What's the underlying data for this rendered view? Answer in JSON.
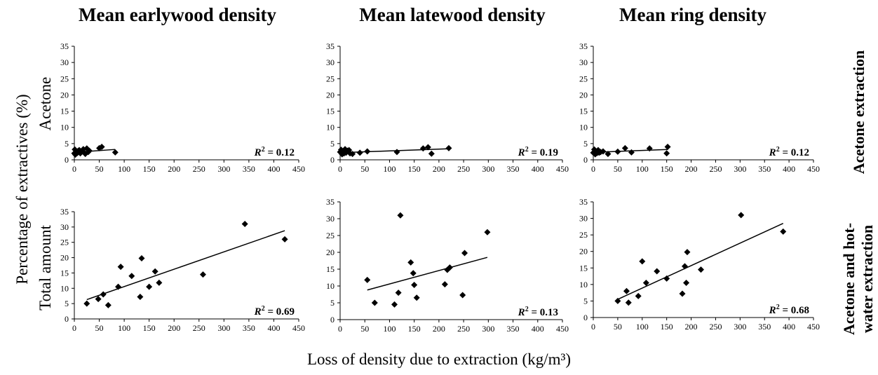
{
  "figure": {
    "col_titles": [
      "Mean earlywood density",
      "Mean latewood density",
      "Mean ring density"
    ],
    "ylabel_outer": "Percentage of extractives (%)",
    "ylabel_rows": [
      "Acetone",
      "Total amount"
    ],
    "row_labels": [
      [
        "Acetone extraction"
      ],
      [
        "Acetone and hot-",
        "water extraction"
      ]
    ],
    "xlabel": "Loss of density due to extraction (kg/m³)"
  },
  "chart_data": [
    {
      "type": "scatter",
      "title": "Mean earlywood density",
      "row": "Acetone",
      "xlim": [
        0,
        450
      ],
      "ylim": [
        0,
        35
      ],
      "xticks": [
        0,
        50,
        100,
        150,
        200,
        250,
        300,
        350,
        400,
        450
      ],
      "yticks": [
        0,
        5,
        10,
        15,
        20,
        25,
        30,
        35
      ],
      "points": [
        [
          0,
          2
        ],
        [
          1,
          3.2
        ],
        [
          2,
          1.6
        ],
        [
          4,
          2.6
        ],
        [
          6,
          2.1
        ],
        [
          8,
          2.8
        ],
        [
          10,
          3
        ],
        [
          12,
          2
        ],
        [
          15,
          2.5
        ],
        [
          18,
          3.3
        ],
        [
          20,
          2.2
        ],
        [
          22,
          1.8
        ],
        [
          25,
          3.5
        ],
        [
          28,
          2.4
        ],
        [
          30,
          2.8
        ],
        [
          50,
          3.6
        ],
        [
          55,
          4
        ],
        [
          82,
          2.3
        ]
      ],
      "trendline": [
        [
          0,
          2.3
        ],
        [
          82,
          3.2
        ]
      ],
      "r2": "0.12"
    },
    {
      "type": "scatter",
      "title": "Mean latewood density",
      "row": "Acetone",
      "xlim": [
        0,
        450
      ],
      "ylim": [
        0,
        35
      ],
      "xticks": [
        0,
        50,
        100,
        150,
        200,
        250,
        300,
        350,
        400,
        450
      ],
      "yticks": [
        0,
        5,
        10,
        15,
        20,
        25,
        30,
        35
      ],
      "points": [
        [
          0,
          2.4
        ],
        [
          2,
          3.1
        ],
        [
          4,
          1.7
        ],
        [
          6,
          2.6
        ],
        [
          8,
          2
        ],
        [
          10,
          3.3
        ],
        [
          12,
          2.2
        ],
        [
          15,
          2.8
        ],
        [
          18,
          3
        ],
        [
          20,
          2
        ],
        [
          25,
          1.8
        ],
        [
          40,
          2.2
        ],
        [
          55,
          2.6
        ],
        [
          115,
          2.4
        ],
        [
          168,
          3.5
        ],
        [
          178,
          3.9
        ],
        [
          185,
          1.9
        ],
        [
          220,
          3.6
        ]
      ],
      "trendline": [
        [
          0,
          2.2
        ],
        [
          220,
          3.4
        ]
      ],
      "r2": "0.19"
    },
    {
      "type": "scatter",
      "title": "Mean ring density",
      "row": "Acetone",
      "xlim": [
        0,
        450
      ],
      "ylim": [
        0,
        35
      ],
      "xticks": [
        0,
        50,
        100,
        150,
        200,
        250,
        300,
        350,
        400,
        450
      ],
      "yticks": [
        0,
        5,
        10,
        15,
        20,
        25,
        30,
        35
      ],
      "points": [
        [
          0,
          2.2
        ],
        [
          2,
          3.2
        ],
        [
          4,
          1.7
        ],
        [
          6,
          2.6
        ],
        [
          8,
          2.1
        ],
        [
          10,
          3
        ],
        [
          12,
          2.2
        ],
        [
          15,
          2.4
        ],
        [
          20,
          2.6
        ],
        [
          30,
          1.8
        ],
        [
          50,
          2.5
        ],
        [
          65,
          3.6
        ],
        [
          78,
          2.3
        ],
        [
          115,
          3.5
        ],
        [
          150,
          2
        ],
        [
          152,
          4
        ]
      ],
      "trendline": [
        [
          0,
          2.3
        ],
        [
          152,
          3.2
        ]
      ],
      "r2": "0.12"
    },
    {
      "type": "scatter",
      "title": "Mean earlywood density",
      "row": "Total amount",
      "xlim": [
        0,
        450
      ],
      "ylim": [
        0,
        35
      ],
      "xticks": [
        0,
        50,
        100,
        150,
        200,
        250,
        300,
        350,
        400,
        450
      ],
      "yticks": [
        0,
        5,
        10,
        15,
        20,
        25,
        30,
        35
      ],
      "points": [
        [
          25,
          5
        ],
        [
          48,
          6.5
        ],
        [
          58,
          8
        ],
        [
          68,
          4.5
        ],
        [
          88,
          10.5
        ],
        [
          93,
          17
        ],
        [
          115,
          14
        ],
        [
          132,
          7.2
        ],
        [
          135,
          19.8
        ],
        [
          150,
          10.5
        ],
        [
          162,
          15.5
        ],
        [
          170,
          11.8
        ],
        [
          258,
          14.5
        ],
        [
          342,
          31
        ],
        [
          422,
          26
        ]
      ],
      "trendline": [
        [
          25,
          6.3
        ],
        [
          422,
          28.8
        ]
      ],
      "r2": "0.69"
    },
    {
      "type": "scatter",
      "title": "Mean latewood density",
      "row": "Total amount",
      "xlim": [
        0,
        450
      ],
      "ylim": [
        0,
        35
      ],
      "xticks": [
        0,
        50,
        100,
        150,
        200,
        250,
        300,
        350,
        400,
        450
      ],
      "yticks": [
        0,
        5,
        10,
        15,
        20,
        25,
        30,
        35
      ],
      "points": [
        [
          55,
          11.8
        ],
        [
          70,
          5
        ],
        [
          110,
          4.5
        ],
        [
          118,
          8
        ],
        [
          122,
          31
        ],
        [
          143,
          17
        ],
        [
          148,
          13.8
        ],
        [
          150,
          10.3
        ],
        [
          155,
          6.5
        ],
        [
          212,
          10.5
        ],
        [
          217,
          14.8
        ],
        [
          222,
          15.5
        ],
        [
          248,
          7.3
        ],
        [
          252,
          19.8
        ],
        [
          298,
          26
        ]
      ],
      "trendline": [
        [
          55,
          8.8
        ],
        [
          298,
          18.5
        ]
      ],
      "r2": "0.13"
    },
    {
      "type": "scatter",
      "title": "Mean ring density",
      "row": "Total amount",
      "xlim": [
        0,
        450
      ],
      "ylim": [
        0,
        35
      ],
      "xticks": [
        0,
        50,
        100,
        150,
        200,
        250,
        300,
        350,
        400,
        450
      ],
      "yticks": [
        0,
        5,
        10,
        15,
        20,
        25,
        30,
        35
      ],
      "points": [
        [
          50,
          5
        ],
        [
          68,
          8
        ],
        [
          72,
          4.5
        ],
        [
          92,
          6.5
        ],
        [
          100,
          17
        ],
        [
          108,
          10.5
        ],
        [
          130,
          14
        ],
        [
          150,
          11.8
        ],
        [
          182,
          7.2
        ],
        [
          187,
          15.5
        ],
        [
          190,
          10.5
        ],
        [
          192,
          19.8
        ],
        [
          220,
          14.5
        ],
        [
          302,
          31
        ],
        [
          388,
          26
        ]
      ],
      "trendline": [
        [
          50,
          5.5
        ],
        [
          388,
          28.5
        ]
      ],
      "r2": "0.68"
    }
  ]
}
